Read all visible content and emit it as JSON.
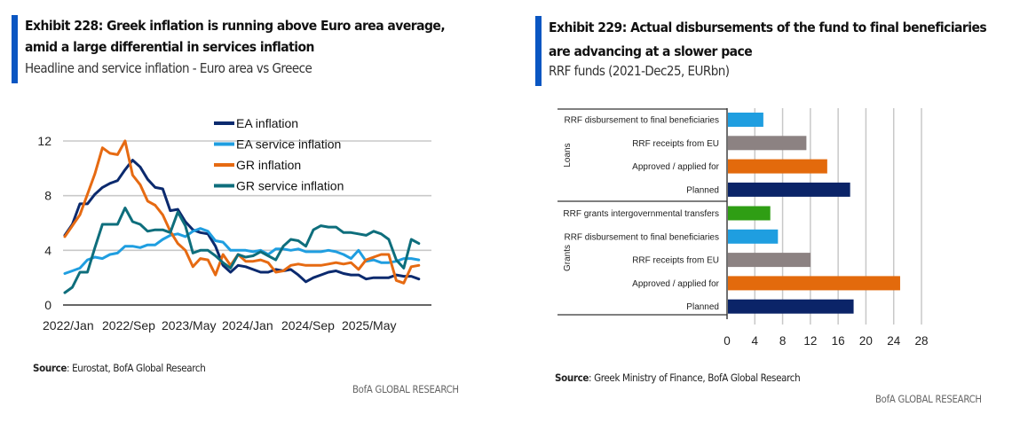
{
  "left_exhibit": {
    "title_line1": "Exhibit 228: Greek inflation is running above Euro area average,",
    "title_line2": "amid a large differential in services inflation",
    "subtitle": "Headline and service inflation - Euro area vs Greece",
    "source_label": "Source",
    "source_text": ": Eurostat, BofA Global Research",
    "brand": "BofA GLOBAL RESEARCH",
    "accent_color": "#0a56c2"
  },
  "right_exhibit": {
    "title_line1": "Exhibit 229: Actual disbursements of the fund to final beneficiaries",
    "title_line2": "are advancing at a slower pace",
    "subtitle": "RRF funds (2021-Dec25, EURbn)",
    "source_label": "Source",
    "source_text": ": Greek Ministry of Finance, BofA Global Research",
    "brand": "BofA GLOBAL RESEARCH",
    "accent_color": "#0a56c2"
  },
  "chart_data": [
    {
      "type": "line",
      "title": "Headline and service inflation - Euro area vs Greece",
      "xlabel": "",
      "ylabel": "",
      "ylim": [
        0,
        12
      ],
      "yticks": [
        0,
        4,
        8,
        12
      ],
      "grid": true,
      "legend_position": "top-right",
      "x_tick_labels": [
        "2022/Jan",
        "2022/Sep",
        "2023/May",
        "2024/Jan",
        "2024/Sep",
        "2025/May"
      ],
      "x_tick_indices": [
        0,
        8,
        16,
        24,
        32,
        40
      ],
      "x_count": 48,
      "series": [
        {
          "name": "EA inflation",
          "color": "#0b2a6e",
          "values": [
            5.1,
            5.9,
            7.4,
            7.4,
            8.1,
            8.6,
            8.9,
            9.1,
            9.9,
            10.6,
            10.1,
            9.2,
            8.6,
            8.5,
            6.9,
            7.0,
            6.1,
            5.5,
            5.3,
            5.2,
            4.3,
            2.9,
            2.4,
            2.9,
            2.8,
            2.6,
            2.4,
            2.4,
            2.6,
            2.5,
            2.6,
            2.2,
            1.7,
            2.0,
            2.2,
            2.4,
            2.5,
            2.3,
            2.2,
            2.2,
            1.9,
            2.0,
            2.0,
            2.0,
            2.2,
            2.1,
            2.1,
            1.9
          ]
        },
        {
          "name": "EA service inflation",
          "color": "#1f9ee0",
          "values": [
            2.3,
            2.5,
            2.7,
            3.3,
            3.5,
            3.4,
            3.7,
            3.8,
            4.3,
            4.3,
            4.2,
            4.4,
            4.4,
            4.8,
            5.1,
            5.2,
            5.0,
            5.4,
            5.6,
            5.4,
            4.7,
            4.6,
            4.0,
            4.0,
            4.0,
            3.9,
            4.0,
            3.7,
            4.1,
            4.1,
            4.0,
            4.1,
            3.9,
            3.9,
            3.9,
            4.0,
            3.9,
            3.7,
            3.4,
            4.0,
            3.2,
            3.3,
            3.1,
            3.1,
            3.2,
            3.4,
            3.4,
            3.3
          ]
        },
        {
          "name": "GR inflation",
          "color": "#e66a12",
          "values": [
            5.0,
            5.8,
            6.6,
            8.1,
            9.6,
            11.5,
            11.1,
            11.0,
            12.0,
            9.5,
            8.8,
            7.6,
            7.3,
            6.6,
            5.4,
            4.5,
            4.0,
            2.8,
            3.4,
            3.3,
            2.2,
            3.7,
            2.9,
            3.7,
            3.2,
            3.2,
            3.3,
            3.1,
            2.4,
            2.5,
            2.9,
            3.0,
            2.9,
            2.9,
            2.9,
            3.0,
            3.1,
            3.0,
            3.1,
            2.6,
            3.3,
            3.5,
            3.7,
            3.7,
            1.8,
            1.6,
            2.8,
            2.9
          ]
        },
        {
          "name": "GR service inflation",
          "color": "#0e6e7c",
          "values": [
            0.9,
            1.3,
            2.4,
            2.4,
            4.2,
            5.9,
            5.9,
            5.9,
            7.1,
            6.1,
            5.9,
            5.4,
            5.5,
            5.5,
            5.3,
            6.8,
            5.8,
            3.8,
            4.0,
            4.0,
            3.6,
            3.1,
            2.7,
            3.7,
            3.5,
            3.6,
            3.9,
            3.6,
            3.3,
            4.3,
            4.8,
            4.7,
            4.3,
            5.5,
            5.8,
            5.7,
            5.7,
            5.3,
            5.3,
            5.2,
            5.1,
            5.4,
            5.2,
            4.8,
            3.3,
            2.7,
            4.8,
            4.5
          ]
        }
      ]
    },
    {
      "type": "bar",
      "orientation": "horizontal",
      "title": "RRF funds (2021-Dec25, EURbn)",
      "xlabel": "",
      "ylabel": "",
      "xlim": [
        0,
        28
      ],
      "xticks": [
        0,
        4,
        8,
        12,
        16,
        20,
        24,
        28
      ],
      "grid": true,
      "groups": [
        {
          "name": "Loans",
          "categories": [
            "RRF disbursement to final beneficiaries",
            "RRF receipts from EU",
            "Approved / applied for",
            "Planned"
          ],
          "values": [
            5.1,
            11.3,
            14.3,
            17.6
          ],
          "colors": [
            "#1f9ee0",
            "#8c8282",
            "#e36a0c",
            "#0b2468"
          ]
        },
        {
          "name": "Grants",
          "categories": [
            "RRF grants intergovernmental transfers",
            "RRF disbursement to final beneficiaries",
            "RRF receipts from EU",
            "Approved / applied for",
            "Planned"
          ],
          "values": [
            6.1,
            7.2,
            11.9,
            24.8,
            18.1
          ],
          "colors": [
            "#2f9e14",
            "#1f9ee0",
            "#8c8282",
            "#e36a0c",
            "#0b2468"
          ]
        }
      ]
    }
  ]
}
